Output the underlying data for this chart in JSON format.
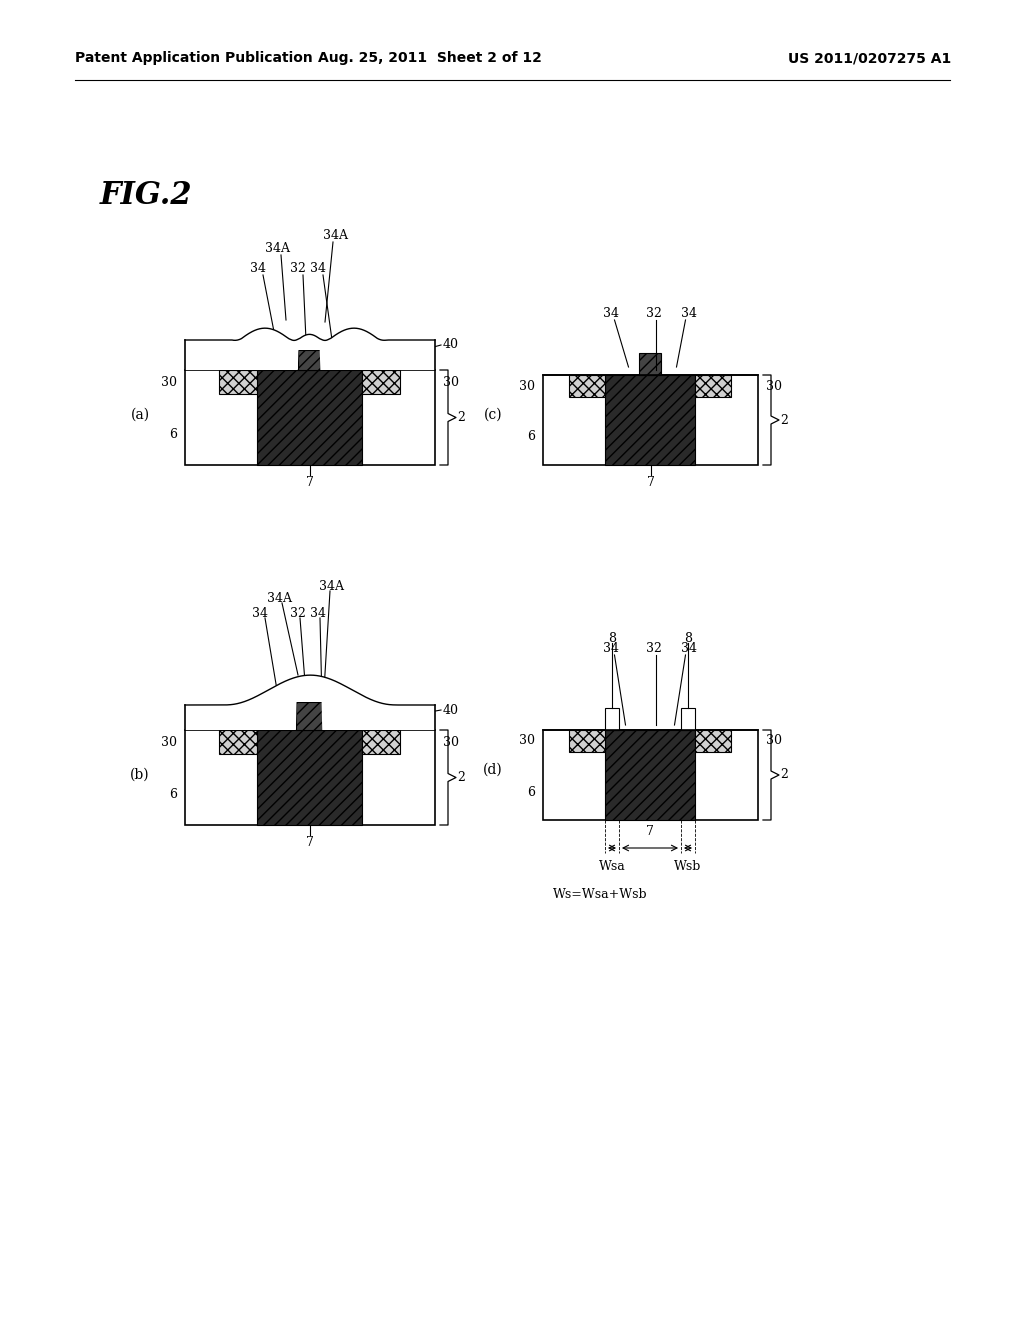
{
  "header_left": "Patent Application Publication",
  "header_mid": "Aug. 25, 2011  Sheet 2 of 12",
  "header_right": "US 2011/0207275 A1",
  "fig_title": "FIG.2",
  "bg_color": "#ffffff"
}
